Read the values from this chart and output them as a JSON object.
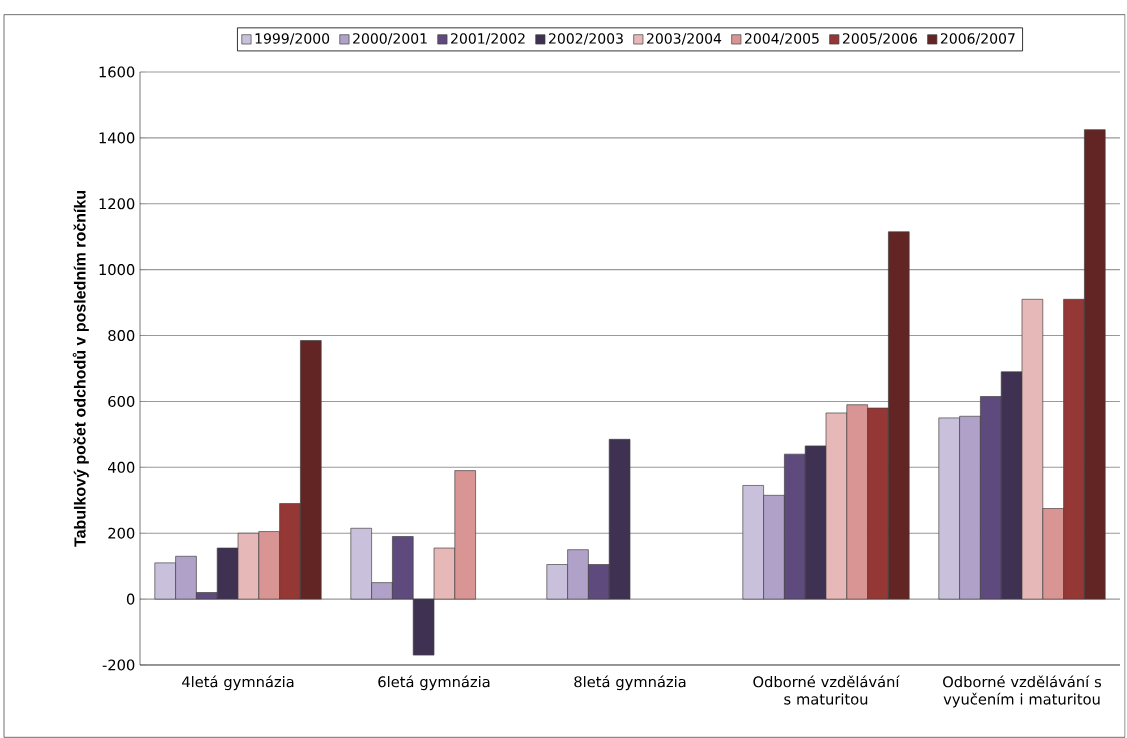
{
  "chart_data": {
    "type": "bar",
    "ylabel": "Tabulkový počet odchodů v posledním ročníku",
    "categories": [
      "4letá gymnázia",
      "6letá gymnázia",
      "8letá gymnázia",
      "Odborné vzdělávání s maturitou",
      "Odborné vzdělávání s vyučením i maturitou"
    ],
    "series": [
      {
        "name": "1999/2000",
        "color": "#c9c1dc",
        "values": [
          110,
          215,
          105,
          345,
          550
        ]
      },
      {
        "name": "2000/2001",
        "color": "#b0a1c8",
        "values": [
          130,
          50,
          150,
          315,
          555
        ]
      },
      {
        "name": "2001/2002",
        "color": "#5f4a7e",
        "values": [
          20,
          190,
          105,
          440,
          615
        ]
      },
      {
        "name": "2002/2003",
        "color": "#3f3152",
        "values": [
          155,
          -170,
          485,
          465,
          690
        ]
      },
      {
        "name": "2003/2004",
        "color": "#e6b8b7",
        "values": [
          200,
          155,
          null,
          565,
          910
        ]
      },
      {
        "name": "2004/2005",
        "color": "#d99594",
        "values": [
          205,
          390,
          null,
          590,
          275
        ]
      },
      {
        "name": "2005/2006",
        "color": "#953735",
        "values": [
          290,
          null,
          null,
          580,
          910
        ]
      },
      {
        "name": "2006/2007",
        "color": "#632523",
        "values": [
          785,
          null,
          null,
          1115,
          1425
        ]
      }
    ],
    "ylim": [
      -200,
      1600
    ],
    "yticks": [
      -200,
      0,
      200,
      400,
      600,
      800,
      1000,
      1200,
      1400,
      1600
    ],
    "grid": "y",
    "legend": "top"
  }
}
